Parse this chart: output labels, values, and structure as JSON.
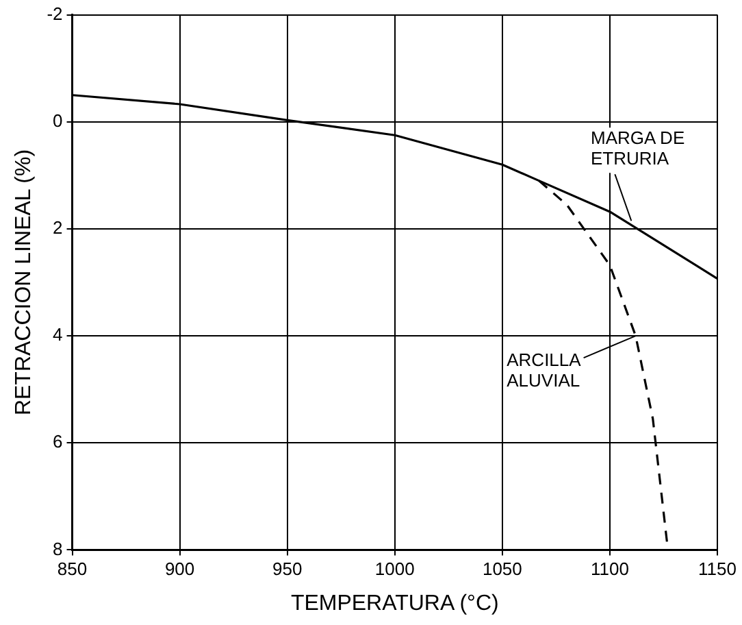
{
  "chart_data": {
    "type": "line",
    "xlabel": "TEMPERATURA (°C)",
    "ylabel": "RETRACCION LINEAL (%)",
    "xlim": [
      850,
      1150
    ],
    "xticks": [
      850,
      900,
      950,
      1000,
      1050,
      1100,
      1150
    ],
    "ylim": [
      8,
      -2
    ],
    "yticks": [
      -2,
      0,
      2,
      4,
      6,
      8
    ],
    "grid": true,
    "legend": false,
    "marker": "none",
    "series": [
      {
        "color": "#000000",
        "line_style": "solid",
        "x": [
          850,
          900,
          950,
          1000,
          1050,
          1067,
          1100,
          1150
        ],
        "values": [
          -0.5,
          -0.33,
          -0.03,
          0.25,
          0.8,
          1.1,
          1.68,
          2.93
        ]
      },
      {
        "color": "#000000",
        "line_style": "dashed",
        "x": [
          1067,
          1080,
          1100,
          1112,
          1120,
          1127
        ],
        "values": [
          1.1,
          1.55,
          2.68,
          4.0,
          5.55,
          8.0
        ]
      }
    ],
    "annotations": [
      {
        "text": "MARGA DE ETRURIA",
        "x": 1110,
        "y": 1.85
      },
      {
        "text": "ARCILLA ALUVIAL",
        "x": 1112,
        "y": 4.0
      }
    ]
  }
}
